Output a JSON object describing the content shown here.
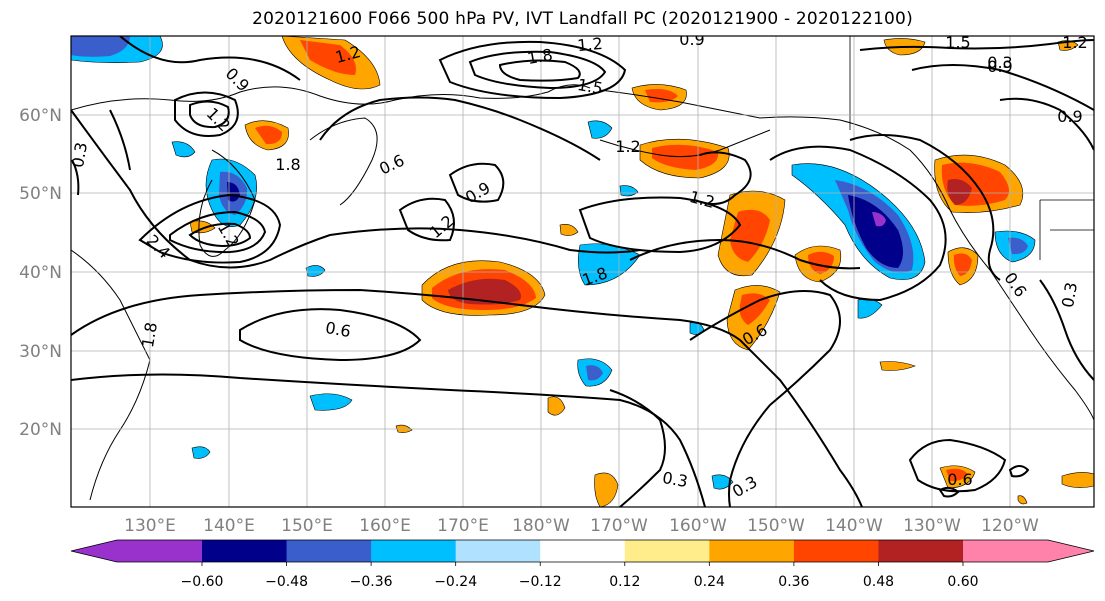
{
  "title": "2020121600 F066 500 hPa PV, IVT Landfall PC (2020121900 - 2020122100)",
  "lat_labels": [
    "60°N",
    "50°N",
    "40°N",
    "30°N",
    "20°N"
  ],
  "lon_labels": [
    "130°E",
    "140°E",
    "150°E",
    "160°E",
    "170°E",
    "180°W",
    "170°W",
    "160°W",
    "150°W",
    "140°W",
    "130°W",
    "120°W"
  ],
  "contour_labels": [
    "1.2",
    "1.8",
    "1.2",
    "0.9",
    "1.5",
    "1.2",
    "0.9",
    "1.5",
    "0.9",
    "0.3",
    "0.9",
    "1.2",
    "1.8",
    "0.6",
    "0.9",
    "1.2",
    "1.2",
    "1.2",
    "1.2",
    "2.4",
    "1.8",
    "0.6",
    "0.6",
    "0.3",
    "0.3",
    "0.6",
    "0.6",
    "0.3",
    "0.3",
    "1.8",
    "0.8"
  ],
  "colorbar": {
    "ticks": [
      "−0.60",
      "−0.48",
      "−0.36",
      "−0.24",
      "−0.12",
      "0.12",
      "0.24",
      "0.36",
      "0.48",
      "0.60"
    ],
    "colors": [
      "#9932cc",
      "#00008b",
      "#3a5fcd",
      "#00bfff",
      "#b0e2ff",
      "#ffffff",
      "#ffec8b",
      "#ffa500",
      "#ff4500",
      "#b22222",
      "#ff82ab"
    ]
  },
  "colors": {
    "fill_neg_3": "#00008b",
    "fill_neg_2": "#3a5fcd",
    "fill_neg_1": "#00bfff",
    "fill_neg_0": "#b0e2ff",
    "fill_pos_0": "#ffec8b",
    "fill_pos_1": "#ffa500",
    "fill_pos_2": "#ff4500",
    "fill_pos_3": "#b22222",
    "grid": "#b0b0b0"
  }
}
